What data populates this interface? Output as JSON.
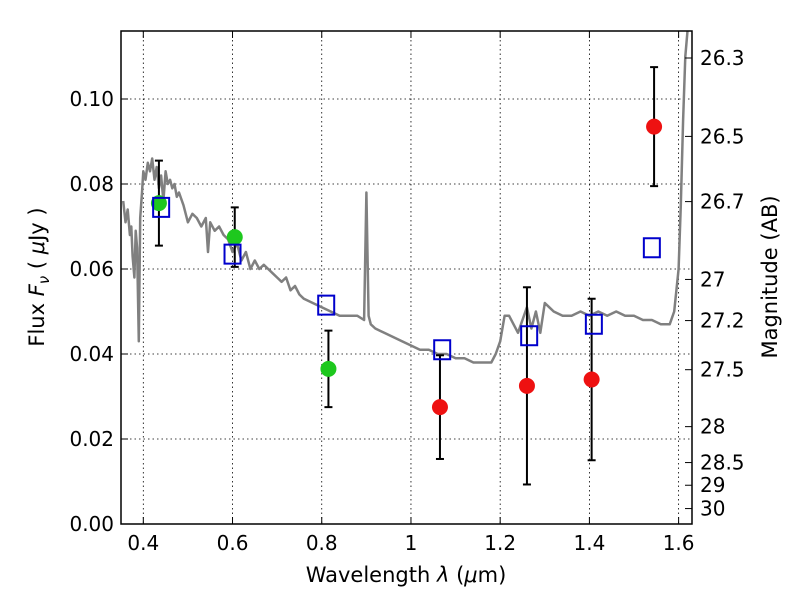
{
  "chart_data": {
    "type": "scatter",
    "xlabel": {
      "prefix": "Wavelength  ",
      "symbol": "λ",
      "unit_open": " (",
      "unit_mu": "μ",
      "unit_rest": "m)"
    },
    "ylabel": {
      "prefix": "Flux  ",
      "symbol": "F",
      "subscript": "ν",
      "unit_open": "  ( ",
      "unit_mu": "μ",
      "unit_rest": "Jy )"
    },
    "ylabel_right": "Magnitude (AB)",
    "xlim": [
      0.35,
      1.63
    ],
    "ylim": [
      0.0,
      0.116
    ],
    "x_ticks": [
      0.4,
      0.6,
      0.8,
      1.0,
      1.2,
      1.4,
      1.6
    ],
    "x_tick_labels": [
      "0.4",
      "0.6",
      "0.8",
      "1",
      "1.2",
      "1.4",
      "1.6"
    ],
    "y_ticks": [
      0.0,
      0.02,
      0.04,
      0.06,
      0.08,
      0.1
    ],
    "y_tick_labels": [
      "0.00",
      "0.02",
      "0.04",
      "0.06",
      "0.08",
      "0.10"
    ],
    "right_ticks": [
      {
        "label": "26.3",
        "mag": 26.3
      },
      {
        "label": "26.5",
        "mag": 26.5
      },
      {
        "label": "26.7",
        "mag": 26.7
      },
      {
        "label": "27",
        "mag": 27.0
      },
      {
        "label": "27.2",
        "mag": 27.2
      },
      {
        "label": "27.5",
        "mag": 27.5
      },
      {
        "label": "28",
        "mag": 28.0
      },
      {
        "label": "28.5",
        "mag": 28.5
      },
      {
        "label": "29",
        "mag": 29.0
      },
      {
        "label": "30",
        "mag": 30.0
      }
    ],
    "grid": true,
    "colors": {
      "sed": "#808080",
      "green": "#1ec81e",
      "red": "#ee1111",
      "model": "#0000cc",
      "errorbar": "#000000"
    },
    "sed_model": {
      "x": [
        0.355,
        0.36,
        0.365,
        0.37,
        0.373,
        0.376,
        0.38,
        0.383,
        0.386,
        0.39,
        0.393,
        0.397,
        0.4,
        0.405,
        0.41,
        0.415,
        0.42,
        0.425,
        0.43,
        0.435,
        0.44,
        0.445,
        0.45,
        0.455,
        0.46,
        0.465,
        0.47,
        0.475,
        0.48,
        0.49,
        0.5,
        0.51,
        0.52,
        0.53,
        0.54,
        0.545,
        0.55,
        0.56,
        0.57,
        0.58,
        0.59,
        0.6,
        0.61,
        0.62,
        0.63,
        0.64,
        0.65,
        0.66,
        0.67,
        0.68,
        0.69,
        0.7,
        0.71,
        0.72,
        0.73,
        0.74,
        0.75,
        0.76,
        0.78,
        0.8,
        0.82,
        0.84,
        0.86,
        0.88,
        0.895,
        0.9,
        0.905,
        0.91,
        0.92,
        0.94,
        0.96,
        0.98,
        1.0,
        1.02,
        1.04,
        1.06,
        1.08,
        1.1,
        1.12,
        1.14,
        1.16,
        1.18,
        1.19,
        1.2,
        1.21,
        1.22,
        1.24,
        1.26,
        1.27,
        1.28,
        1.29,
        1.3,
        1.31,
        1.32,
        1.34,
        1.36,
        1.38,
        1.4,
        1.42,
        1.44,
        1.46,
        1.48,
        1.5,
        1.52,
        1.54,
        1.56,
        1.58,
        1.59,
        1.6,
        1.605,
        1.61,
        1.615,
        1.62
      ],
      "y": [
        0.076,
        0.071,
        0.074,
        0.068,
        0.07,
        0.063,
        0.058,
        0.069,
        0.065,
        0.043,
        0.072,
        0.078,
        0.083,
        0.081,
        0.085,
        0.083,
        0.086,
        0.081,
        0.084,
        0.079,
        0.082,
        0.076,
        0.083,
        0.08,
        0.081,
        0.079,
        0.08,
        0.077,
        0.078,
        0.075,
        0.071,
        0.073,
        0.072,
        0.07,
        0.072,
        0.064,
        0.071,
        0.069,
        0.07,
        0.068,
        0.067,
        0.064,
        0.066,
        0.062,
        0.064,
        0.06,
        0.062,
        0.06,
        0.061,
        0.06,
        0.059,
        0.058,
        0.057,
        0.058,
        0.055,
        0.056,
        0.054,
        0.053,
        0.052,
        0.051,
        0.05,
        0.049,
        0.049,
        0.049,
        0.048,
        0.078,
        0.049,
        0.047,
        0.046,
        0.045,
        0.044,
        0.043,
        0.042,
        0.041,
        0.041,
        0.04,
        0.04,
        0.039,
        0.039,
        0.038,
        0.038,
        0.038,
        0.04,
        0.043,
        0.049,
        0.049,
        0.045,
        0.051,
        0.046,
        0.05,
        0.045,
        0.052,
        0.051,
        0.05,
        0.049,
        0.049,
        0.05,
        0.049,
        0.05,
        0.049,
        0.05,
        0.049,
        0.049,
        0.048,
        0.048,
        0.047,
        0.047,
        0.05,
        0.06,
        0.075,
        0.095,
        0.11,
        0.116
      ]
    },
    "series": [
      {
        "marker": "circle",
        "color_key": "green",
        "points": [
          {
            "x": 0.435,
            "y": 0.0755,
            "err": 0.01
          },
          {
            "x": 0.605,
            "y": 0.0675,
            "err": 0.007
          },
          {
            "x": 0.815,
            "y": 0.0365,
            "err": 0.009
          }
        ]
      },
      {
        "marker": "circle",
        "color_key": "red",
        "points": [
          {
            "x": 1.065,
            "y": 0.0275,
            "err": 0.0122
          },
          {
            "x": 1.26,
            "y": 0.0325,
            "err": 0.0232
          },
          {
            "x": 1.405,
            "y": 0.034,
            "err": 0.019
          },
          {
            "x": 1.545,
            "y": 0.0935,
            "err": 0.014
          }
        ]
      },
      {
        "marker": "square",
        "color_key": "model",
        "points": [
          {
            "x": 0.44,
            "y": 0.0745
          },
          {
            "x": 0.6,
            "y": 0.0635
          },
          {
            "x": 0.81,
            "y": 0.0515
          },
          {
            "x": 1.07,
            "y": 0.041
          },
          {
            "x": 1.265,
            "y": 0.0443
          },
          {
            "x": 1.41,
            "y": 0.047
          },
          {
            "x": 1.54,
            "y": 0.065
          }
        ]
      }
    ]
  }
}
